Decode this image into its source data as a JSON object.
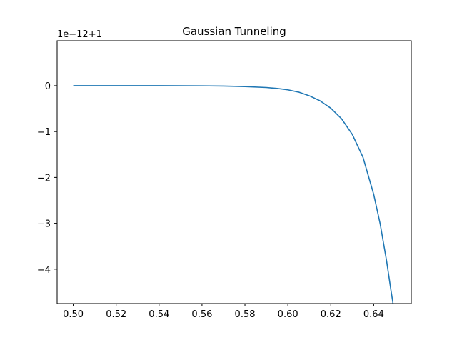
{
  "chart_data": {
    "type": "line",
    "title": "Gaussian Tunneling",
    "offset_label": "1e−12+1",
    "xlabel": "",
    "ylabel": "",
    "xlim": [
      0.4925,
      0.6575
    ],
    "ylim": [
      -4.75,
      0.98
    ],
    "xticks": [
      {
        "value": 0.5,
        "label": "0.50"
      },
      {
        "value": 0.52,
        "label": "0.52"
      },
      {
        "value": 0.54,
        "label": "0.54"
      },
      {
        "value": 0.56,
        "label": "0.56"
      },
      {
        "value": 0.58,
        "label": "0.58"
      },
      {
        "value": 0.6,
        "label": "0.60"
      },
      {
        "value": 0.62,
        "label": "0.62"
      },
      {
        "value": 0.64,
        "label": "0.64"
      }
    ],
    "yticks": [
      {
        "value": 0,
        "label": "0"
      },
      {
        "value": -1,
        "label": "−1"
      },
      {
        "value": -2,
        "label": "−2"
      },
      {
        "value": -3,
        "label": "−3"
      },
      {
        "value": -4,
        "label": "−4"
      }
    ],
    "grid": false,
    "series": [
      {
        "color": "#1f77b4",
        "x": [
          0.5,
          0.52,
          0.54,
          0.56,
          0.57,
          0.58,
          0.59,
          0.595,
          0.6,
          0.605,
          0.61,
          0.615,
          0.62,
          0.625,
          0.63,
          0.635,
          0.64,
          0.643,
          0.646,
          0.648,
          0.649
        ],
        "y": [
          0.0,
          0.0,
          0.0,
          -0.003,
          -0.008,
          -0.02,
          -0.04,
          -0.06,
          -0.09,
          -0.14,
          -0.22,
          -0.33,
          -0.49,
          -0.72,
          -1.06,
          -1.56,
          -2.37,
          -3.01,
          -3.82,
          -4.45,
          -4.75
        ]
      }
    ]
  }
}
